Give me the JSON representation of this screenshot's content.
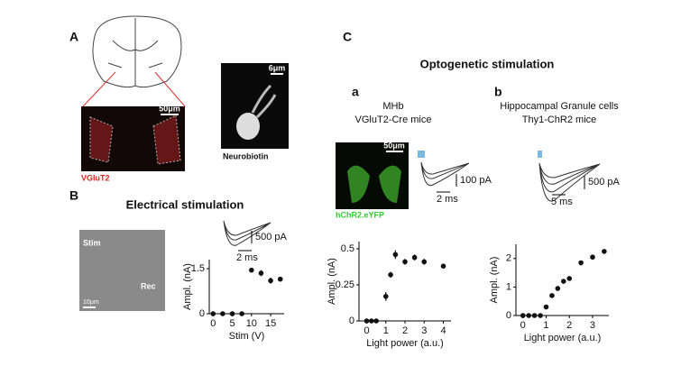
{
  "panels": {
    "a": {
      "label": "A",
      "image_label": "VGluT2",
      "scale": "50μm",
      "neuro_scale": "6μm",
      "neuro_label": "Neurobiotin"
    },
    "b": {
      "label": "B",
      "title": "Electrical stimulation",
      "stim": "Stim",
      "rec": "Rec",
      "scale": "10μm",
      "trace_amp": "500 pA",
      "trace_time": "2 ms"
    },
    "c": {
      "label": "C",
      "title": "Optogenetic stimulation",
      "a": {
        "label": "a",
        "title": "MHb",
        "subtitle": "VGluT2-Cre mice",
        "scale": "50μm",
        "image_label": "hChR2.eYFP",
        "trace_amp": "100 pA",
        "trace_time": "2 ms"
      },
      "b": {
        "label": "b",
        "title": "Hippocampal Granule cells",
        "subtitle": "Thy1-ChR2 mice",
        "trace_amp": "500 pA",
        "trace_time": "5 ms"
      }
    }
  },
  "chart_data": [
    {
      "type": "scatter",
      "x_label": "Stim (V)",
      "y_label": "Ampl. (nA)",
      "x": [
        0,
        2.5,
        5,
        7.5,
        10,
        12.5,
        15,
        17.5
      ],
      "values": [
        0,
        0,
        0,
        0,
        1.45,
        1.35,
        1.1,
        1.15
      ],
      "errors": [
        0,
        0,
        0,
        0,
        0.05,
        0.1,
        0.1,
        0.05
      ],
      "color": "#111111",
      "xlim": [
        -1,
        18.5
      ],
      "ylim": [
        0,
        1.8
      ],
      "xticks": [
        0,
        5,
        10,
        15
      ],
      "yticks": [
        0,
        1.5
      ]
    },
    {
      "type": "scatter",
      "x_label": "Light power (a.u.)",
      "y_label": "Ampl. (nA)",
      "x": [
        0,
        0.25,
        0.5,
        1,
        1.25,
        1.5,
        2,
        2.5,
        3,
        4
      ],
      "values": [
        0,
        0,
        0,
        0.17,
        0.32,
        0.46,
        0.41,
        0.44,
        0.41,
        0.38
      ],
      "errors": [
        0,
        0,
        0,
        0.03,
        0.02,
        0.03,
        0.02,
        0.02,
        0.02,
        0.01
      ],
      "color": "#111111",
      "xlim": [
        -0.4,
        4.4
      ],
      "ylim": [
        0,
        0.55
      ],
      "xticks": [
        0,
        1,
        2,
        3,
        4
      ],
      "yticks": [
        0,
        0.25,
        0.5
      ]
    },
    {
      "type": "scatter",
      "x_label": "Light power (a.u.)",
      "y_label": "Ampl. (nA)",
      "x": [
        0,
        0.25,
        0.5,
        0.75,
        1,
        1.25,
        1.5,
        1.75,
        2,
        2.5,
        3,
        3.5
      ],
      "values": [
        0,
        0,
        0,
        0,
        0.3,
        0.7,
        0.95,
        1.2,
        1.3,
        1.85,
        2.05,
        2.25
      ],
      "errors": [
        0,
        0,
        0,
        0,
        0,
        0.05,
        0.05,
        0.05,
        0.05,
        0.05,
        0.05,
        0.05
      ],
      "color": "#111111",
      "xlim": [
        -0.3,
        3.7
      ],
      "ylim": [
        0,
        2.5
      ],
      "xticks": [
        0,
        1,
        2,
        3
      ],
      "yticks": [
        0,
        1,
        2
      ]
    }
  ]
}
